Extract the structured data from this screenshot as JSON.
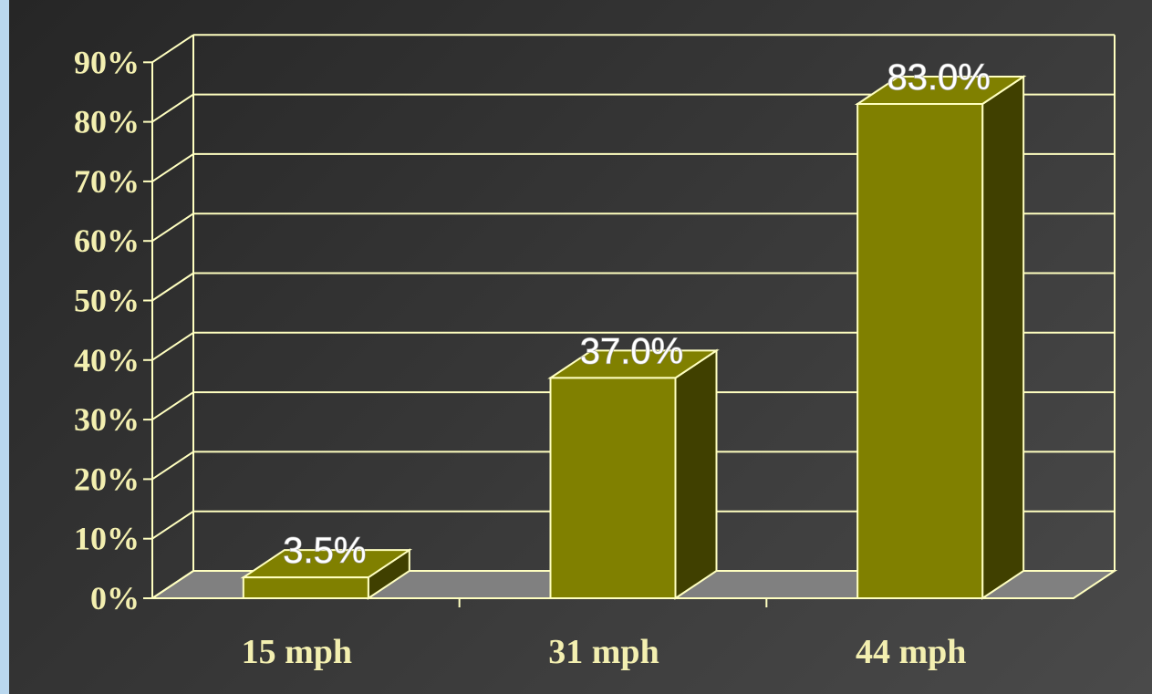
{
  "chart_data": {
    "type": "bar",
    "categories": [
      "15 mph",
      "31 mph",
      "44 mph"
    ],
    "values": [
      3.5,
      37.0,
      83.0
    ],
    "data_labels": [
      "3.5%",
      "37.0%",
      "83.0%"
    ],
    "y_ticks": [
      "0%",
      "10%",
      "20%",
      "30%",
      "40%",
      "50%",
      "60%",
      "70%",
      "80%",
      "90%"
    ],
    "ylim": [
      0,
      90
    ],
    "grid": true,
    "style": "3d-bar",
    "colors": {
      "bar_front": "#808000",
      "bar_side": "#404000",
      "bar_top": "#808000",
      "floor": "#808080",
      "grid": "#ffffc0",
      "label_text": "#f3efb0",
      "background": "#333333"
    }
  }
}
